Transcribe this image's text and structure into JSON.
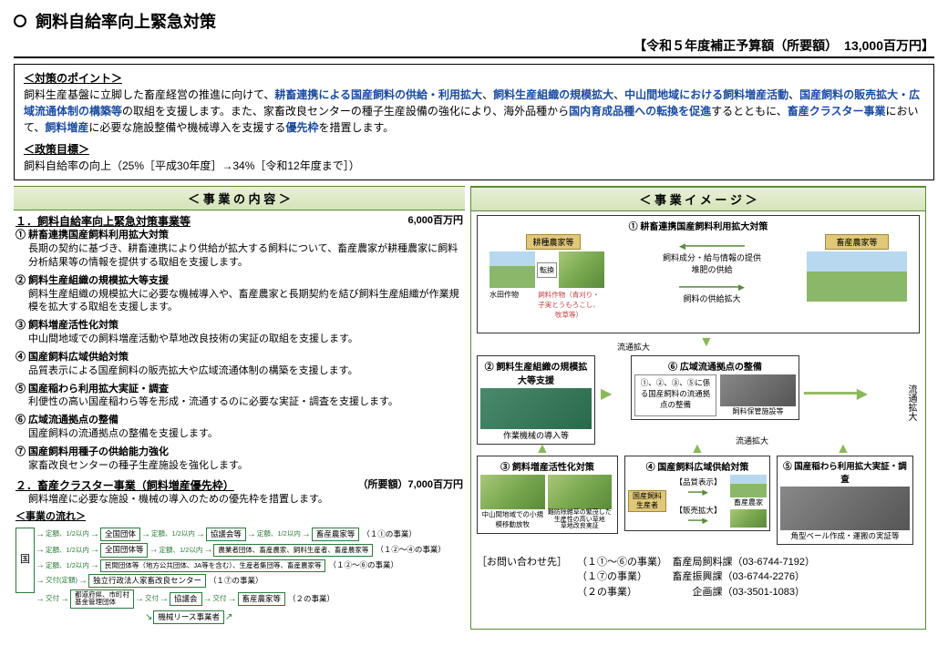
{
  "title": "飼料自給率向上緊急対策",
  "budget_line": "【令和５年度補正予算額（所要額）　13,000百万円】",
  "points": {
    "heading": "＜対策のポイント＞",
    "text_pre": "飼料生産基盤に立脚した畜産経営の推進に向けて、",
    "hl1": "耕畜連携による国産飼料の供給・利用拡大",
    "hl2": "飼料生産組織の規模拡大",
    "hl3": "中山間地域における飼料増産活動",
    "hl4": "国産飼料の販売拡大・広域流通体制の構築等",
    "mid1": "の取組を支援します。また、家畜改良センターの種子生産設備の強化により、海外品種から",
    "hl5": "国内育成品種への転換を促進",
    "mid2": "するとともに、",
    "hl6": "畜産クラスター事業",
    "mid3": "において、",
    "hl7": "飼料増産",
    "mid4": "に必要な施設整備や機械導入を支援する",
    "hl8": "優先枠",
    "tail": "を措置します。",
    "policy_heading": "＜政策目標＞",
    "policy_text": "飼料自給率の向上（25%［平成30年度］→34%［令和12年度まで］）"
  },
  "left": {
    "header": "＜ 事 業 の 内 容 ＞",
    "sec1_title": "１．飼料自給率向上緊急対策事業等",
    "sec1_amount": "6,000百万円",
    "items": [
      {
        "num": "①",
        "title": "耕畜連携国産飼料利用拡大対策",
        "desc": "長期の契約に基づき、耕畜連携により供給が拡大する飼料について、畜産農家が耕種農家に飼料分析結果等の情報を提供する取組を支援します。"
      },
      {
        "num": "②",
        "title": "飼料生産組織の規模拡大等支援",
        "desc": "飼料生産組織の規模拡大に必要な機械導入や、畜産農家と長期契約を結び飼料生産組織が作業規模を拡大する取組を支援します。"
      },
      {
        "num": "③",
        "title": "飼料増産活性化対策",
        "desc": "中山間地域での飼料増産活動や草地改良技術の実証の取組を支援します。"
      },
      {
        "num": "④",
        "title": "国産飼料広域供給対策",
        "desc": "品質表示による国産飼料の販売拡大や広域流通体制の構築を支援します。"
      },
      {
        "num": "⑤",
        "title": "国産稲わら利用拡大実証・調査",
        "desc": "利便性の高い国産稲わら等を形成・流通するのに必要な実証・調査を支援します。"
      },
      {
        "num": "⑥",
        "title": "広域流通拠点の整備",
        "desc": "国産飼料の流通拠点の整備を支援します。"
      },
      {
        "num": "⑦",
        "title": "国産飼料用種子の供給能力強化",
        "desc": "家畜改良センターの種子生産施設を強化します。"
      }
    ],
    "sec2_title": "２．畜産クラスター事業（飼料増産優先枠）",
    "sec2_amount": "（所要額）7,000百万円",
    "sec2_desc": "飼料増産に必要な施設・機械の導入のための優先枠を措置します。",
    "flow_title": "＜事業の流れ＞",
    "flow": {
      "kuni": "国",
      "zenkoku": "全国団体",
      "zenkoku2": "全国団体等",
      "minkan": "民間団体等（地方公共団体、JA等を含む）、生産者集団等、畜産農家等",
      "dokuritu": "独立行政法人家畜改良センター",
      "todofuken": "都道府県、市町村\n基金管理団体",
      "kyogikai": "協議会等",
      "nogyosya": "農業者団体、畜産農家、飼料生産者、畜産農家等",
      "chikusan": "畜産農家等",
      "kyogikai2": "協議会",
      "lease": "機械リース事業者",
      "teigaku": "定額、1/2以内",
      "kofu_teigaku": "交付(定額)",
      "kofu": "交付",
      "note1": "（１①の事業）",
      "note2": "（１②～④の事業）",
      "note3": "（１②～⑥の事業）",
      "note4": "（１⑦の事業）",
      "note5": "（２の事業）"
    }
  },
  "right": {
    "header": "＜ 事 業 イ メ ー ジ ＞",
    "box1_title": "① 耕畜連携国産飼料利用拡大対策",
    "koushu": "耕種農家等",
    "chikusan_noka": "畜産農家等",
    "tenkan": "転換",
    "suiden": "水田作物",
    "shiryo_sakumotsu": "飼料作物（青刈り・子実とうもろこし、牧草等）",
    "supply_info": "飼料成分・給与情報の提供\n堆肥の供給",
    "supply_expand": "飼料の供給拡大",
    "box2_title": "② 飼料生産組織の規模拡大等支援",
    "box2_sub": "作業機械の導入等",
    "box6_title": "⑥ 広域流通拠点の整備",
    "box6_desc": "①、②、③、⑤に係る国産飼料の流通拠点の整備",
    "hokan": "飼料保管施設等",
    "ryutu": "流通拡大",
    "box3_title": "③ 飼料増産活性化対策",
    "box3_sub1": "中山間地域での小規模移動放牧",
    "box3_sub2": "難防除雑草の繁茂した生産性の高い草地\n草地改良実証",
    "box4_title": "④ 国産飼料広域供給対策",
    "box4_brand": "国産飼料\n生産者",
    "hinshitsu": "【品質表示】",
    "hanbai": "【販売拡大】",
    "chikusan2": "畜産農家",
    "box5_title": "⑤ 国産稲わら利用拡大実証・調査",
    "box5_sub": "角型ベール作成・運搬の実証等"
  },
  "contact": {
    "label": "［お問い合わせ先］",
    "line1": "（１①～⑥の事業）　畜産局飼料課（03-6744-7192）",
    "line2": "（１⑦の事業）　　　畜産振興課（03-6744-2276）",
    "line3": "（２の事業）　　　　　　企画課（03-3501-1083）"
  }
}
